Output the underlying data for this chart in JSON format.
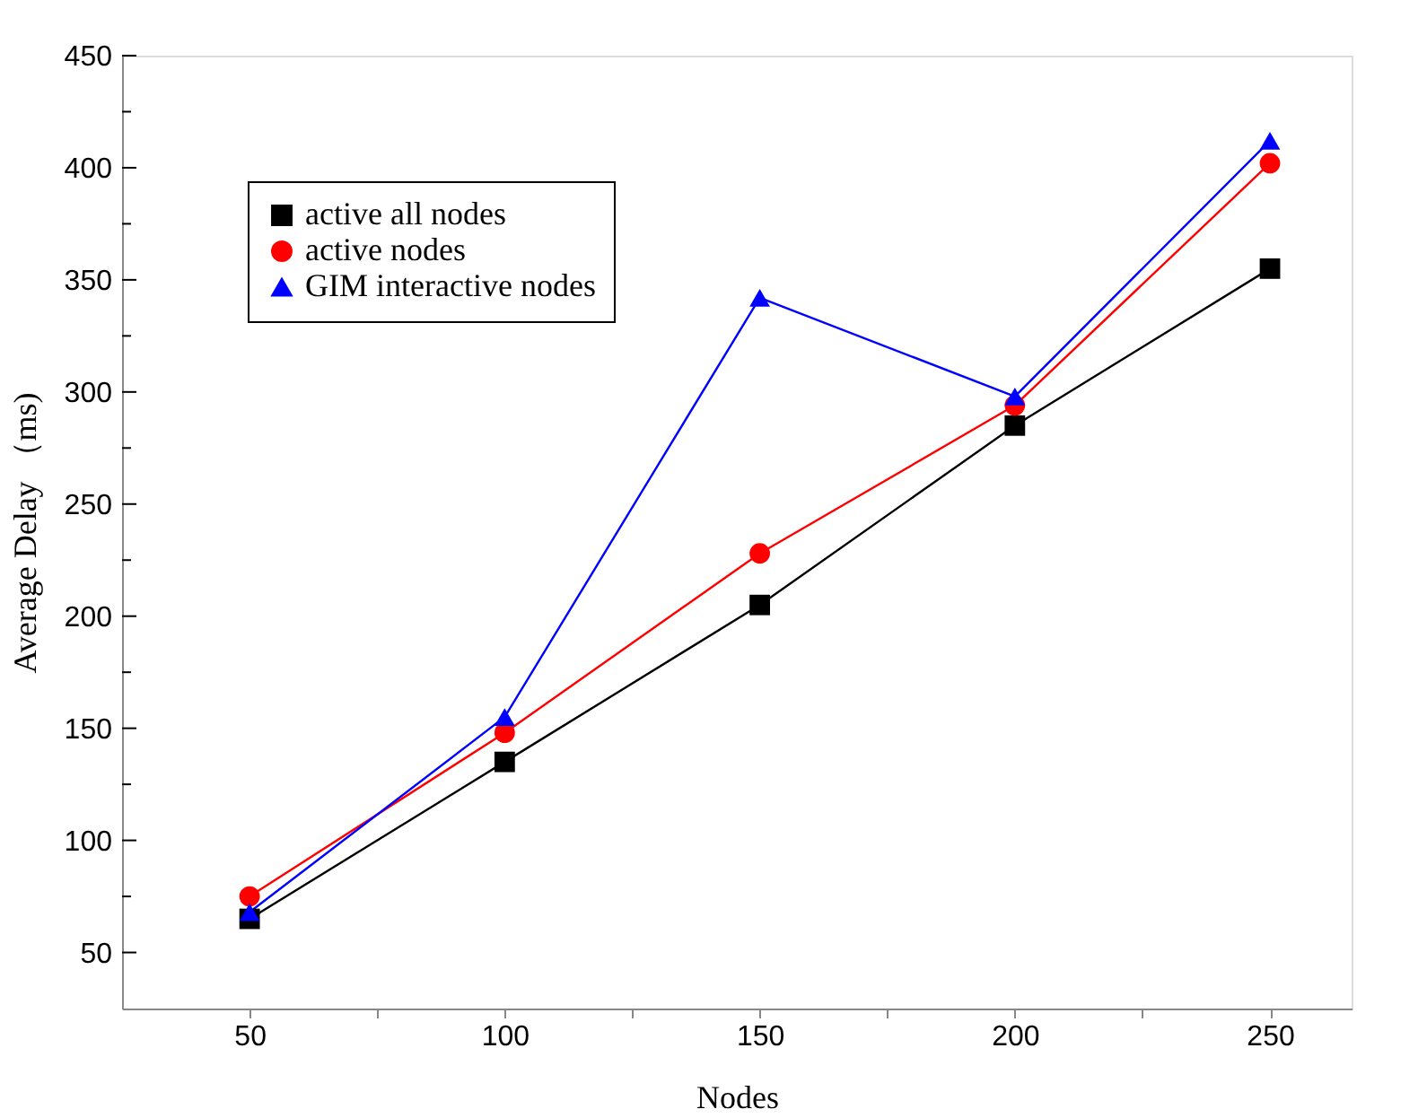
{
  "chart_data": {
    "type": "line",
    "xlabel": "Nodes",
    "ylabel": "Average Delay （ms)",
    "x": [
      50,
      100,
      150,
      200,
      250
    ],
    "series": [
      {
        "name": "active all nodes",
        "color": "#000000",
        "marker": "square",
        "values": [
          65,
          135,
          205,
          285,
          355
        ]
      },
      {
        "name": "active  nodes",
        "color": "#ff0000",
        "marker": "circle",
        "values": [
          75,
          148,
          228,
          294,
          402
        ]
      },
      {
        "name": "GIM interactive nodes",
        "color": "#0000ff",
        "marker": "triangle",
        "values": [
          68,
          155,
          342,
          298,
          412
        ]
      }
    ],
    "xlim": [
      25,
      266
    ],
    "ylim": [
      25,
      450
    ],
    "xticks": [
      50,
      {
        "value": 75,
        "label": null
      },
      100,
      {
        "value": 125,
        "label": null
      },
      150,
      {
        "value": 175,
        "label": null
      },
      200,
      {
        "value": 225,
        "label": null
      },
      250
    ],
    "yticks": [
      50,
      {
        "value": 75,
        "label": null
      },
      100,
      {
        "value": 125,
        "label": null
      },
      150,
      {
        "value": 175,
        "label": null
      },
      200,
      {
        "value": 225,
        "label": null
      },
      250,
      {
        "value": 275,
        "label": null
      },
      300,
      {
        "value": 325,
        "label": null
      },
      350,
      {
        "value": 375,
        "label": null
      },
      400,
      {
        "value": 425,
        "label": null
      },
      450
    ],
    "grid": false,
    "legend": "top left",
    "line_style": "solid"
  }
}
